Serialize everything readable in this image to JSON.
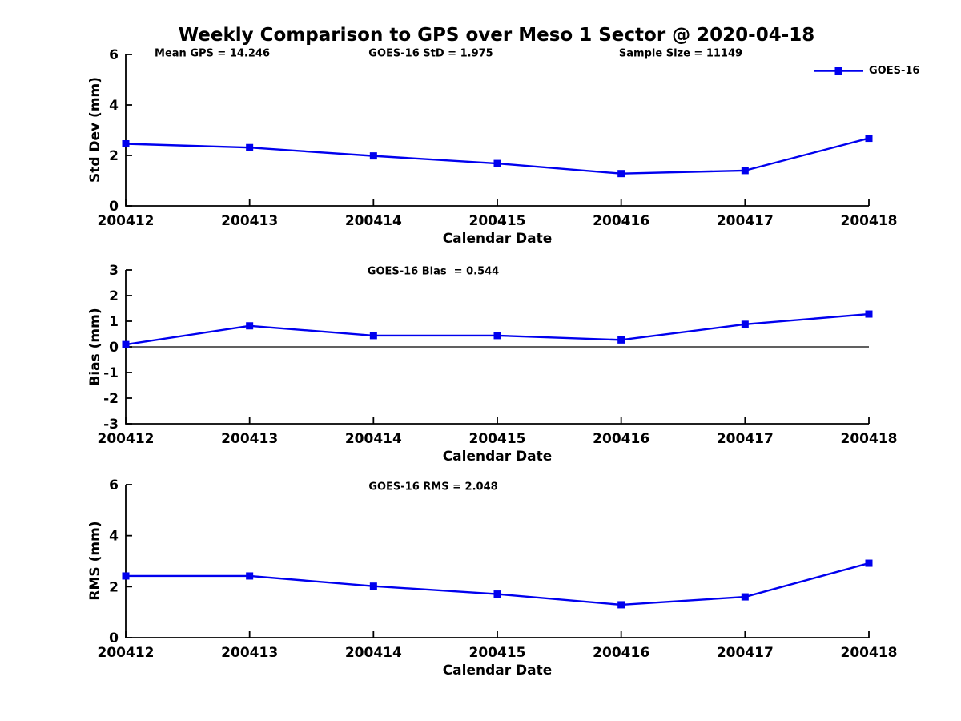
{
  "figure": {
    "title": "Weekly Comparison to GPS over Meso 1 Sector @ 2020-04-18",
    "background": "#ffffff",
    "accent_color": "#0000ee",
    "axis_color": "#000000"
  },
  "legend": {
    "label": "GOES-16",
    "marker": "filled-square",
    "color": "#0000ee"
  },
  "chart_data": [
    {
      "id": "std-dev",
      "type": "line",
      "subtitle_annotations": [
        "Mean GPS = 14.246",
        "GOES-16 StD = 1.975",
        "Sample Size = 11149"
      ],
      "categories": [
        "200412",
        "200413",
        "200414",
        "200415",
        "200416",
        "200417",
        "200418"
      ],
      "series": [
        {
          "name": "GOES-16",
          "color": "#0000ee",
          "marker": "square",
          "values": [
            2.46,
            2.31,
            1.98,
            1.68,
            1.28,
            1.4,
            2.68
          ]
        }
      ],
      "xlabel": "Calendar Date",
      "ylabel": "Std Dev (mm)",
      "ylim": [
        0,
        6
      ],
      "yticks": [
        0,
        2,
        4,
        6
      ],
      "grid": false,
      "zero_line": false,
      "legend_position": "top-right-outside"
    },
    {
      "id": "bias",
      "type": "line",
      "subtitle_annotations": [
        "GOES-16 Bias  = 0.544"
      ],
      "categories": [
        "200412",
        "200413",
        "200414",
        "200415",
        "200416",
        "200417",
        "200418"
      ],
      "series": [
        {
          "name": "GOES-16",
          "color": "#0000ee",
          "marker": "square",
          "values": [
            0.09,
            0.82,
            0.44,
            0.44,
            0.27,
            0.88,
            1.28
          ]
        }
      ],
      "xlabel": "Calendar Date",
      "ylabel": "Bias (mm)",
      "ylim": [
        -3,
        3
      ],
      "yticks": [
        -3,
        -2,
        -1,
        0,
        1,
        2,
        3
      ],
      "grid": false,
      "zero_line": true,
      "legend_position": "none"
    },
    {
      "id": "rms",
      "type": "line",
      "subtitle_annotations": [
        "GOES-16 RMS = 2.048"
      ],
      "categories": [
        "200412",
        "200413",
        "200414",
        "200415",
        "200416",
        "200417",
        "200418"
      ],
      "series": [
        {
          "name": "GOES-16",
          "color": "#0000ee",
          "marker": "square",
          "values": [
            2.42,
            2.42,
            2.02,
            1.71,
            1.29,
            1.6,
            2.92
          ]
        }
      ],
      "xlabel": "Calendar Date",
      "ylabel": "RMS (mm)",
      "ylim": [
        0,
        6
      ],
      "yticks": [
        0,
        2,
        4,
        6
      ],
      "grid": false,
      "zero_line": false,
      "legend_position": "none"
    }
  ]
}
